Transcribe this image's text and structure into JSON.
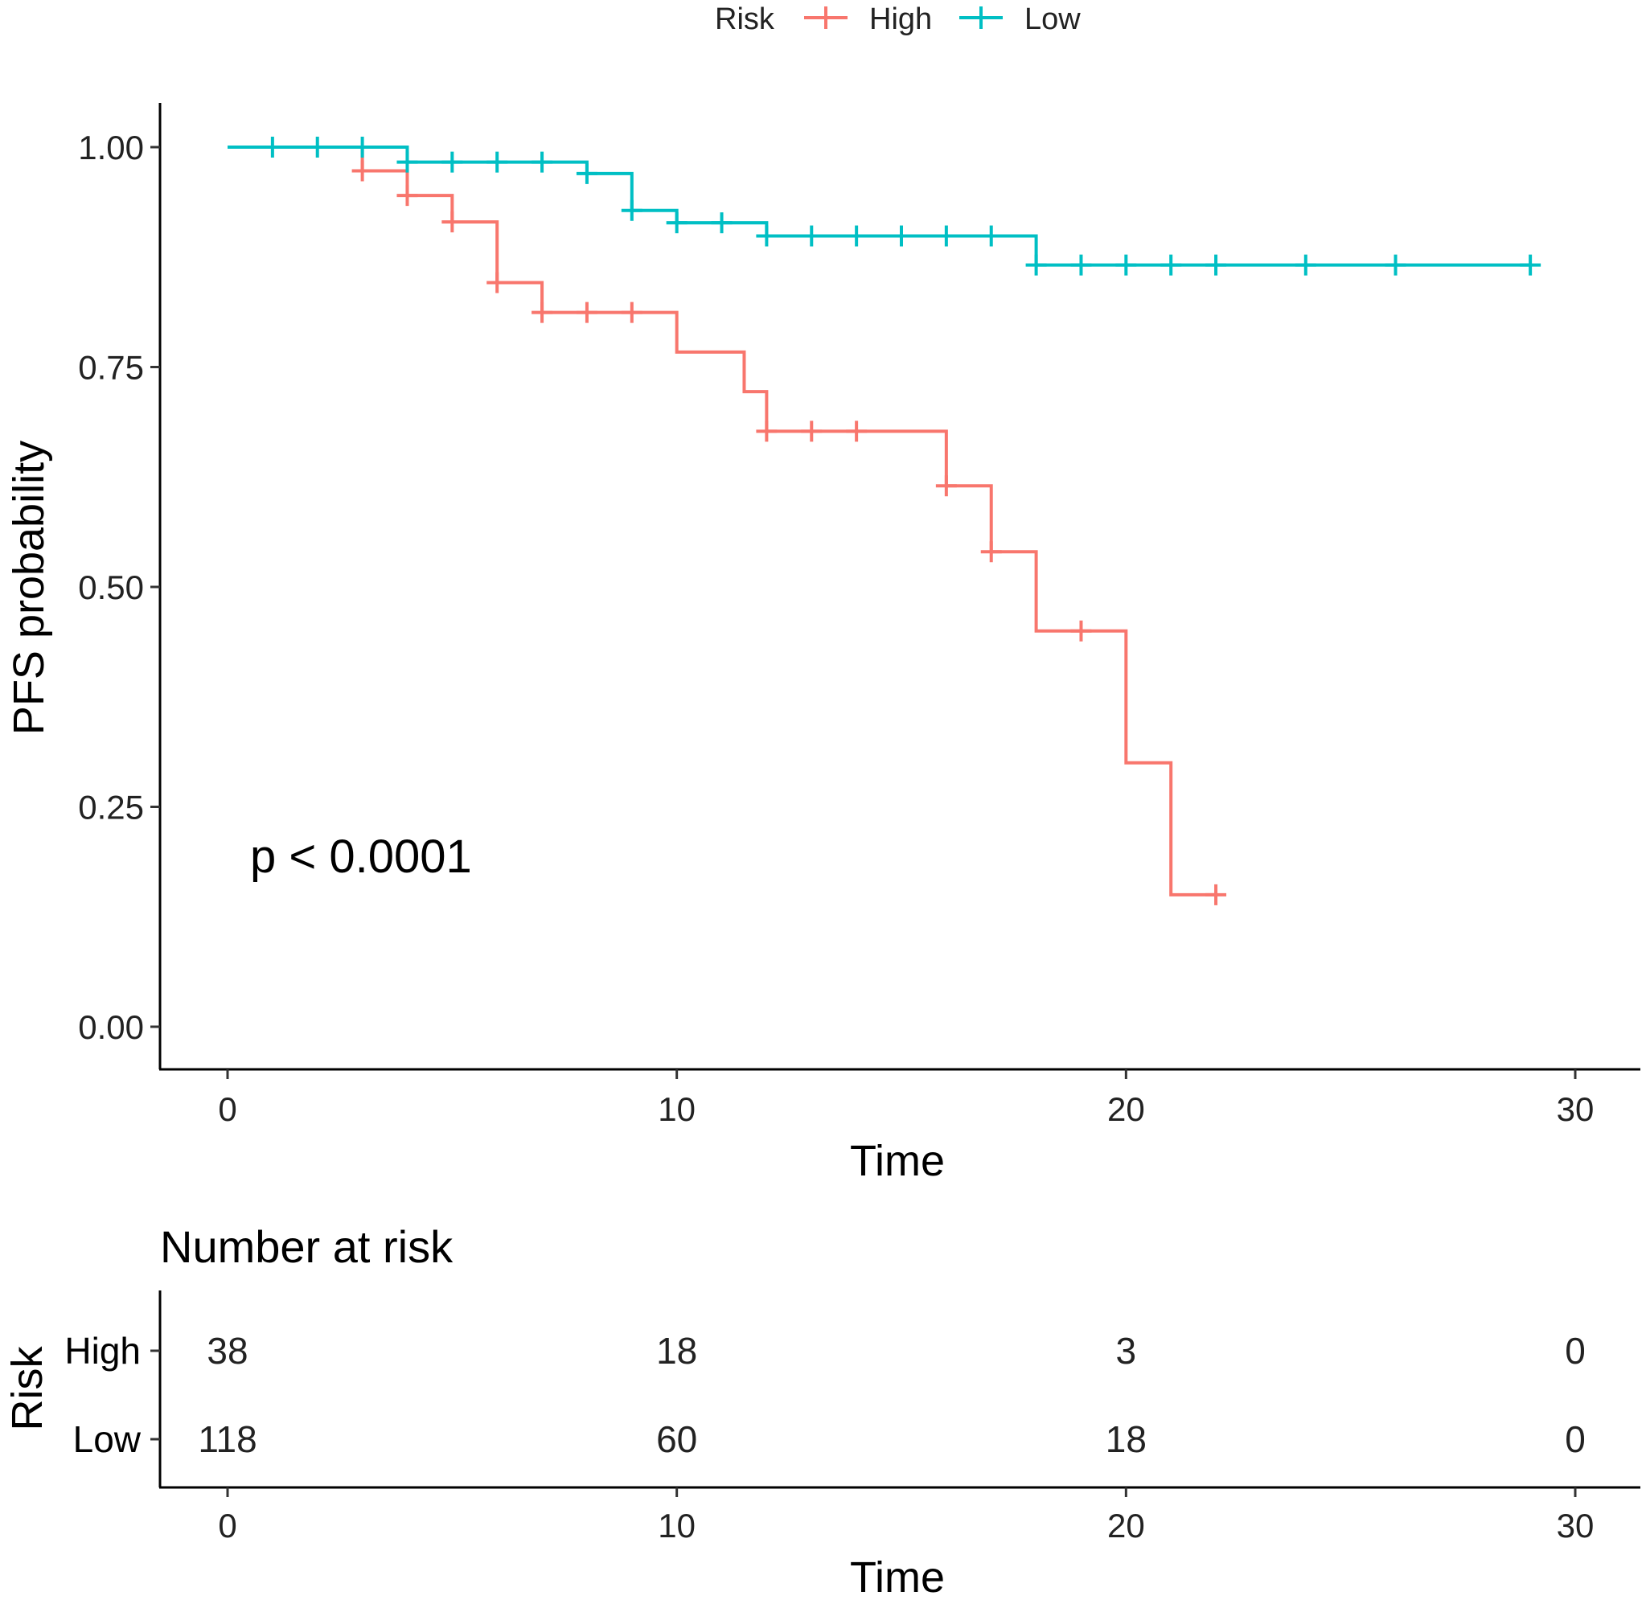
{
  "chart_data": [
    {
      "type": "line",
      "subtype": "kaplan-meier",
      "title": "",
      "xlabel": "Time",
      "ylabel": "PFS probability",
      "xlim": [
        0,
        30
      ],
      "ylim": [
        0,
        1
      ],
      "x_ticks": [
        0,
        10,
        20,
        30
      ],
      "y_ticks": [
        0.0,
        0.25,
        0.5,
        0.75,
        1.0
      ],
      "y_tick_labels": [
        "0.00",
        "0.25",
        "0.50",
        "0.75",
        "1.00"
      ],
      "legend": {
        "title": "Risk",
        "position": "top",
        "entries": [
          "High",
          "Low"
        ]
      },
      "annotation": "p < 0.0001",
      "series": [
        {
          "name": "High",
          "color": "#F8766D",
          "steps": [
            [
              0,
              1.0
            ],
            [
              3,
              0.973
            ],
            [
              4,
              0.945
            ],
            [
              5,
              0.915
            ],
            [
              6,
              0.846
            ],
            [
              7,
              0.812
            ],
            [
              10,
              0.767
            ],
            [
              11.5,
              0.722
            ],
            [
              12,
              0.677
            ],
            [
              16,
              0.615
            ],
            [
              17,
              0.54
            ],
            [
              18,
              0.45
            ],
            [
              20,
              0.3
            ],
            [
              21,
              0.15
            ],
            [
              22,
              0.15
            ]
          ],
          "censored": [
            [
              3,
              0.973
            ],
            [
              4,
              0.945
            ],
            [
              5,
              0.915
            ],
            [
              6,
              0.846
            ],
            [
              7,
              0.812
            ],
            [
              8,
              0.812
            ],
            [
              9,
              0.812
            ],
            [
              12,
              0.677
            ],
            [
              13,
              0.677
            ],
            [
              14,
              0.677
            ],
            [
              16,
              0.615
            ],
            [
              17,
              0.54
            ],
            [
              19,
              0.45
            ],
            [
              22,
              0.15
            ]
          ]
        },
        {
          "name": "Low",
          "color": "#00BFC4",
          "steps": [
            [
              0,
              1.0
            ],
            [
              4,
              0.983
            ],
            [
              8,
              0.97
            ],
            [
              9,
              0.928
            ],
            [
              10,
              0.914
            ],
            [
              12,
              0.899
            ],
            [
              18,
              0.866
            ],
            [
              29,
              0.866
            ]
          ],
          "censored": [
            [
              1,
              1.0
            ],
            [
              2,
              1.0
            ],
            [
              3,
              1.0
            ],
            [
              4,
              0.983
            ],
            [
              5,
              0.983
            ],
            [
              6,
              0.983
            ],
            [
              7,
              0.983
            ],
            [
              8,
              0.97
            ],
            [
              9,
              0.928
            ],
            [
              10,
              0.914
            ],
            [
              11,
              0.914
            ],
            [
              12,
              0.899
            ],
            [
              13,
              0.899
            ],
            [
              14,
              0.899
            ],
            [
              15,
              0.899
            ],
            [
              16,
              0.899
            ],
            [
              17,
              0.899
            ],
            [
              18,
              0.866
            ],
            [
              19,
              0.866
            ],
            [
              20,
              0.866
            ],
            [
              21,
              0.866
            ],
            [
              22,
              0.866
            ],
            [
              24,
              0.866
            ],
            [
              26,
              0.866
            ],
            [
              29,
              0.866
            ]
          ]
        }
      ]
    },
    {
      "type": "table",
      "title": "Number at risk",
      "xlabel": "Time",
      "ylabel": "Risk",
      "xlim": [
        0,
        30
      ],
      "x_ticks": [
        0,
        10,
        20,
        30
      ],
      "times": [
        0,
        10,
        20,
        30
      ],
      "rows": [
        {
          "name": "High",
          "color": "#F8766D",
          "values": [
            38,
            18,
            3,
            0
          ]
        },
        {
          "name": "Low",
          "color": "#00BFC4",
          "values": [
            118,
            60,
            18,
            0
          ]
        }
      ]
    }
  ]
}
